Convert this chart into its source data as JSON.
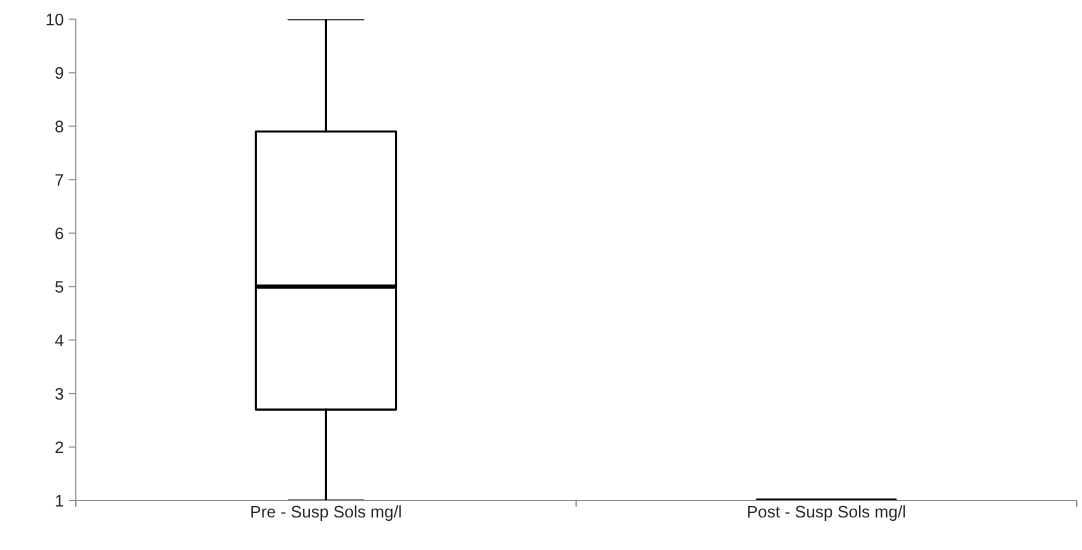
{
  "chart_data": {
    "type": "box",
    "categories": [
      "Pre - Susp Sols mg/l",
      "Post - Susp Sols mg/l"
    ],
    "boxes": [
      {
        "low": 1,
        "q1": 2.7,
        "median": 5,
        "q3": 7.9,
        "high": 10
      },
      {
        "low": 1,
        "q1": 1,
        "median": 1,
        "q3": 1,
        "high": 1
      }
    ],
    "ylim": [
      1,
      10
    ],
    "yticks": [
      1,
      2,
      3,
      4,
      5,
      6,
      7,
      8,
      9,
      10
    ],
    "grid": false
  }
}
